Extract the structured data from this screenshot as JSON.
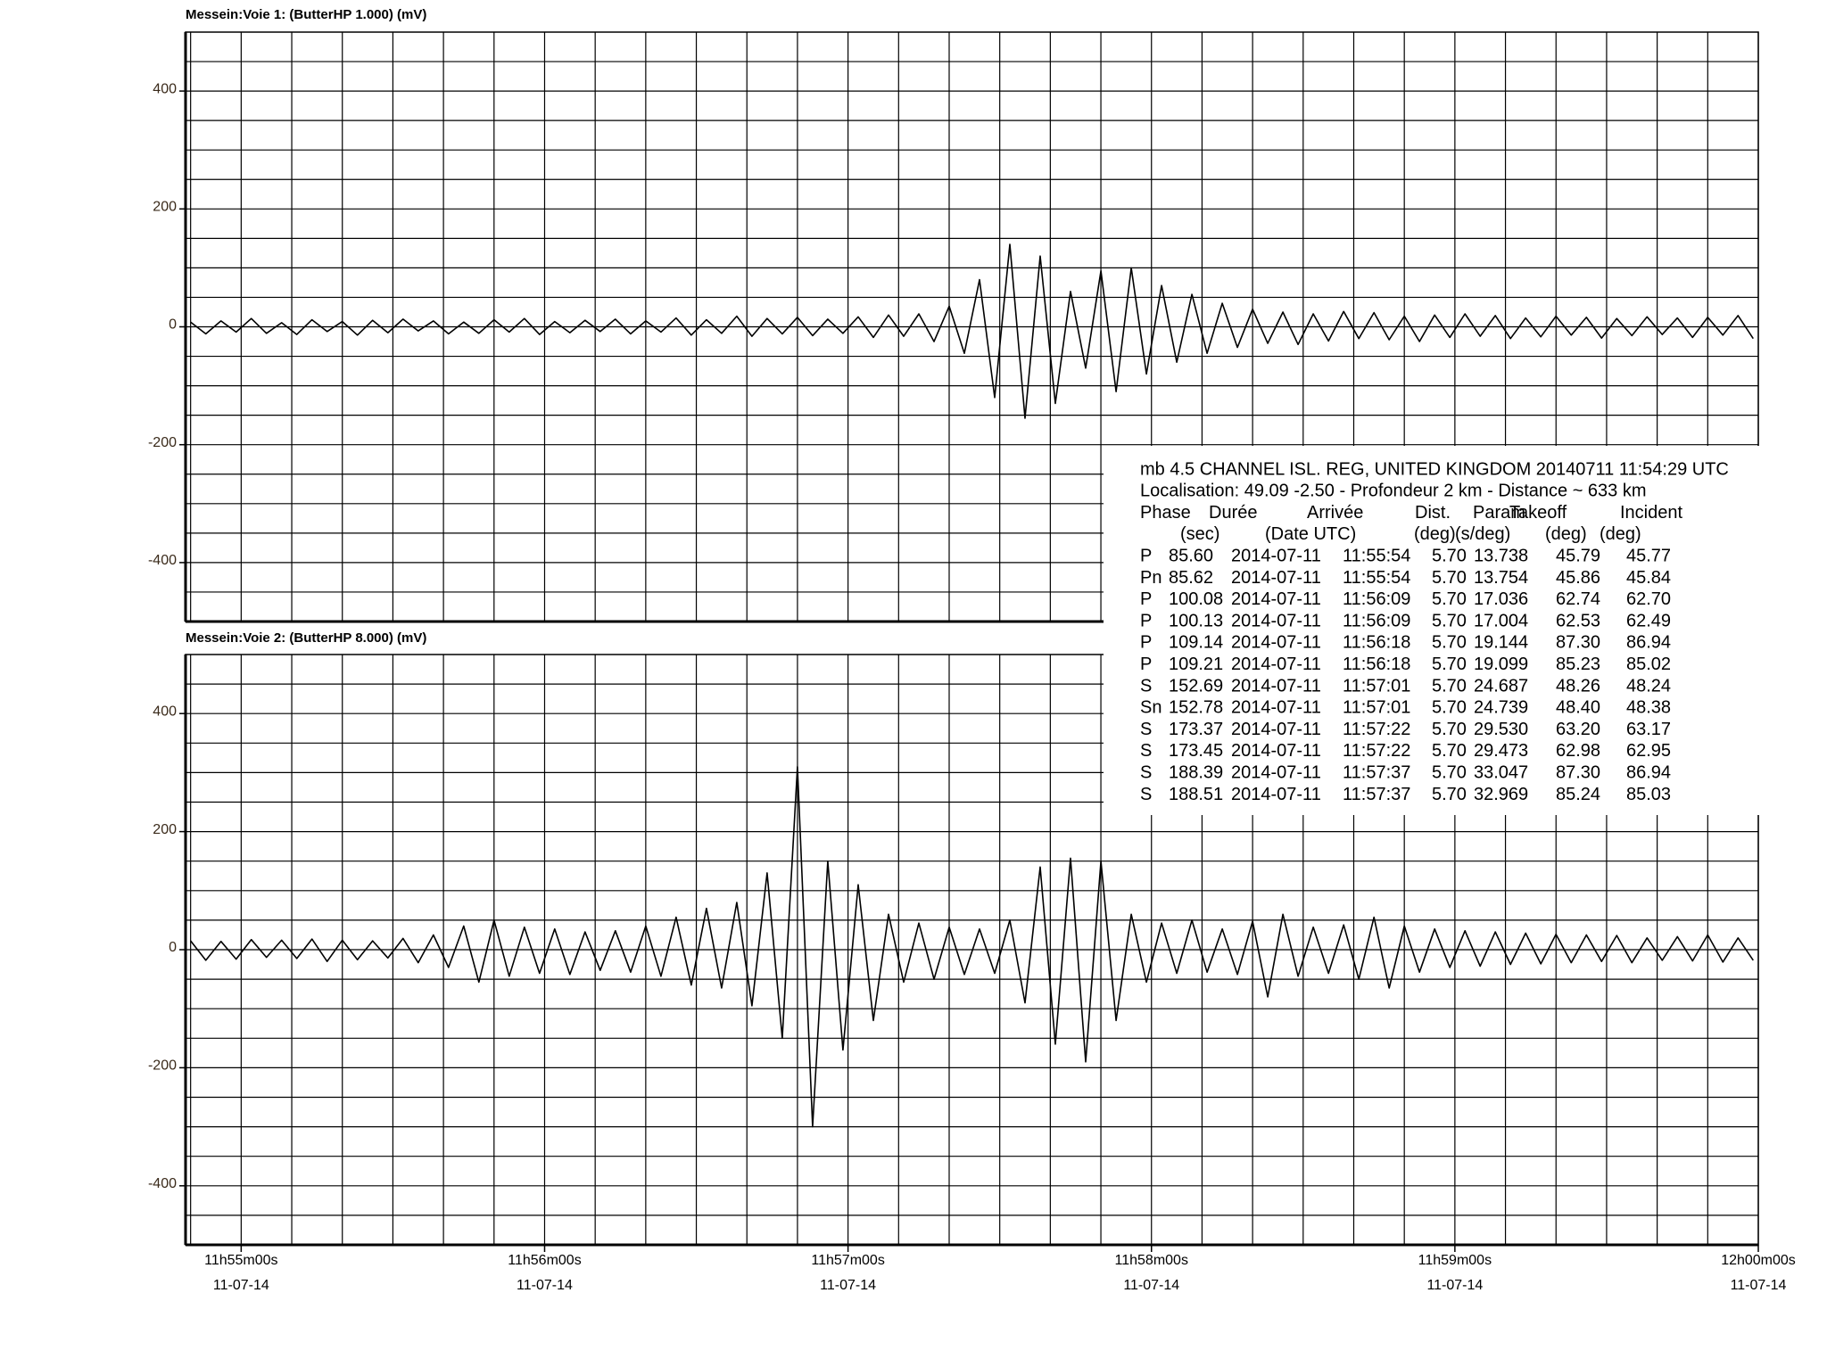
{
  "chart_data": [
    {
      "type": "line",
      "title": "Messein:Voie 1: (ButterHP 1.000) (mV)",
      "x": [
        42890,
        42893,
        42896,
        42899,
        42902,
        42905,
        42908,
        42911,
        42914,
        42917,
        42920,
        42923,
        42926,
        42929,
        42932,
        42935,
        42938,
        42941,
        42944,
        42947,
        42950,
        42953,
        42956,
        42959,
        42962,
        42965,
        42968,
        42971,
        42974,
        42977,
        42980,
        42983,
        42986,
        42989,
        42992,
        42995,
        42998,
        43001,
        43004,
        43007,
        43010,
        43013,
        43016,
        43019,
        43022,
        43025,
        43028,
        43031,
        43034,
        43037,
        43040,
        43043,
        43046,
        43049,
        43052,
        43055,
        43058,
        43061,
        43064,
        43067,
        43070,
        43073,
        43076,
        43079,
        43082,
        43085,
        43088,
        43091,
        43094,
        43097,
        43100,
        43103,
        43106,
        43109,
        43112,
        43115,
        43118,
        43121,
        43124,
        43127,
        43130,
        43133,
        43136,
        43139,
        43142,
        43145,
        43148,
        43151,
        43154,
        43157,
        43160,
        43163,
        43166,
        43169,
        43172,
        43175,
        43178,
        43181,
        43184,
        43187,
        43190,
        43193,
        43196,
        43199
      ],
      "series": [
        {
          "color": "#000000",
          "values": [
            8,
            -12,
            10,
            -9,
            14,
            -11,
            7,
            -13,
            12,
            -8,
            9,
            -14,
            11,
            -10,
            13,
            -7,
            10,
            -12,
            8,
            -11,
            12,
            -9,
            14,
            -13,
            9,
            -10,
            11,
            -8,
            13,
            -12,
            10,
            -9,
            15,
            -14,
            12,
            -11,
            18,
            -16,
            14,
            -12,
            16,
            -15,
            13,
            -11,
            17,
            -18,
            20,
            -16,
            22,
            -25,
            35,
            -45,
            80,
            -120,
            140,
            -155,
            120,
            -130,
            60,
            -70,
            95,
            -110,
            100,
            -80,
            70,
            -60,
            55,
            -45,
            40,
            -35,
            30,
            -28,
            25,
            -30,
            22,
            -24,
            26,
            -20,
            24,
            -22,
            18,
            -25,
            20,
            -18,
            22,
            -16,
            19,
            -20,
            15,
            -17,
            18,
            -14,
            16,
            -19,
            14,
            -15,
            17,
            -13,
            15,
            -18,
            16,
            -14,
            19,
            -20
          ]
        }
      ],
      "xlim": [
        42889,
        43200
      ],
      "ylim": [
        -500,
        500
      ],
      "yticks": [
        -400,
        -200,
        0,
        200,
        400
      ],
      "ygrid": [
        -450,
        -400,
        -350,
        -300,
        -250,
        -200,
        -150,
        -100,
        -50,
        0,
        50,
        100,
        150,
        200,
        250,
        300,
        350,
        400,
        450
      ],
      "xgrid": [
        42890,
        42900,
        42910,
        42920,
        42930,
        42940,
        42950,
        42960,
        42970,
        42980,
        42990,
        43000,
        43010,
        43020,
        43030,
        43040,
        43050,
        43060,
        43070,
        43080,
        43090,
        43100,
        43110,
        43120,
        43130,
        43140,
        43150,
        43160,
        43170,
        43180,
        43190,
        43200
      ]
    },
    {
      "type": "line",
      "title": "Messein:Voie 2: (ButterHP 8.000) (mV)",
      "x": [
        42890,
        42893,
        42896,
        42899,
        42902,
        42905,
        42908,
        42911,
        42914,
        42917,
        42920,
        42923,
        42926,
        42929,
        42932,
        42935,
        42938,
        42941,
        42944,
        42947,
        42950,
        42953,
        42956,
        42959,
        42962,
        42965,
        42968,
        42971,
        42974,
        42977,
        42980,
        42983,
        42986,
        42989,
        42992,
        42995,
        42998,
        43001,
        43004,
        43007,
        43010,
        43013,
        43016,
        43019,
        43022,
        43025,
        43028,
        43031,
        43034,
        43037,
        43040,
        43043,
        43046,
        43049,
        43052,
        43055,
        43058,
        43061,
        43064,
        43067,
        43070,
        43073,
        43076,
        43079,
        43082,
        43085,
        43088,
        43091,
        43094,
        43097,
        43100,
        43103,
        43106,
        43109,
        43112,
        43115,
        43118,
        43121,
        43124,
        43127,
        43130,
        43133,
        43136,
        43139,
        43142,
        43145,
        43148,
        43151,
        43154,
        43157,
        43160,
        43163,
        43166,
        43169,
        43172,
        43175,
        43178,
        43181,
        43184,
        43187,
        43190,
        43193,
        43196,
        43199
      ],
      "series": [
        {
          "color": "#000000",
          "values": [
            15,
            -18,
            14,
            -16,
            17,
            -13,
            16,
            -15,
            18,
            -20,
            16,
            -17,
            15,
            -14,
            19,
            -22,
            25,
            -30,
            40,
            -55,
            50,
            -45,
            38,
            -40,
            35,
            -42,
            30,
            -35,
            32,
            -38,
            40,
            -45,
            55,
            -60,
            70,
            -65,
            80,
            -95,
            130,
            -150,
            310,
            -300,
            150,
            -170,
            110,
            -120,
            60,
            -55,
            45,
            -50,
            38,
            -42,
            35,
            -40,
            50,
            -90,
            140,
            -160,
            155,
            -190,
            150,
            -120,
            60,
            -55,
            45,
            -40,
            50,
            -38,
            35,
            -42,
            48,
            -80,
            60,
            -45,
            38,
            -40,
            42,
            -50,
            55,
            -65,
            40,
            -38,
            35,
            -30,
            32,
            -28,
            30,
            -25,
            28,
            -24,
            26,
            -22,
            25,
            -20,
            24,
            -22,
            20,
            -18,
            22,
            -19,
            25,
            -21,
            20,
            -18
          ]
        }
      ],
      "xlim": [
        42889,
        43200
      ],
      "ylim": [
        -500,
        500
      ],
      "yticks": [
        -400,
        -200,
        0,
        200,
        400
      ],
      "ygrid": [
        -450,
        -400,
        -350,
        -300,
        -250,
        -200,
        -150,
        -100,
        -50,
        0,
        50,
        100,
        150,
        200,
        250,
        300,
        350,
        400,
        450
      ],
      "xgrid": [
        42890,
        42900,
        42910,
        42920,
        42930,
        42940,
        42950,
        42960,
        42970,
        42980,
        42990,
        43000,
        43010,
        43020,
        43030,
        43040,
        43050,
        43060,
        43070,
        43080,
        43090,
        43100,
        43110,
        43120,
        43130,
        43140,
        43150,
        43160,
        43170,
        43180,
        43190,
        43200
      ],
      "xticks": [
        {
          "value": 42900,
          "label": "11h55m00s",
          "date": "11-07-14"
        },
        {
          "value": 42960,
          "label": "11h56m00s",
          "date": "11-07-14"
        },
        {
          "value": 43020,
          "label": "11h57m00s",
          "date": "11-07-14"
        },
        {
          "value": 43080,
          "label": "11h58m00s",
          "date": "11-07-14"
        },
        {
          "value": 43140,
          "label": "11h59m00s",
          "date": "11-07-14"
        },
        {
          "value": 43200,
          "label": "12h00m00s",
          "date": "11-07-14"
        }
      ]
    }
  ],
  "event_info": {
    "title": "mb 4.5  CHANNEL ISL. REG, UNITED KINGDOM 20140711 11:54:29 UTC",
    "location": "Localisation: 49.09 -2.50 - Profondeur 2   km - Distance ~ 633 km",
    "header": [
      "Phase",
      "Durée",
      "Arrivée",
      "Dist.",
      "Param",
      "Takeoff",
      "Incident"
    ],
    "units": [
      "(sec)",
      "(Date UTC)",
      "(deg)",
      "(s/deg)",
      "(deg)",
      "(deg)"
    ],
    "rows": [
      [
        "P",
        "85.60",
        "2014-07-11",
        "11:55:54",
        "5.70",
        "13.738",
        "45.79",
        "45.77"
      ],
      [
        "Pn",
        "85.62",
        "2014-07-11",
        "11:55:54",
        "5.70",
        "13.754",
        "45.86",
        "45.84"
      ],
      [
        "P",
        "100.08",
        "2014-07-11",
        "11:56:09",
        "5.70",
        "17.036",
        "62.74",
        "62.70"
      ],
      [
        "P",
        "100.13",
        "2014-07-11",
        "11:56:09",
        "5.70",
        "17.004",
        "62.53",
        "62.49"
      ],
      [
        "P",
        "109.14",
        "2014-07-11",
        "11:56:18",
        "5.70",
        "19.144",
        "87.30",
        "86.94"
      ],
      [
        "P",
        "109.21",
        "2014-07-11",
        "11:56:18",
        "5.70",
        "19.099",
        "85.23",
        "85.02"
      ],
      [
        "S",
        "152.69",
        "2014-07-11",
        "11:57:01",
        "5.70",
        "24.687",
        "48.26",
        "48.24"
      ],
      [
        "Sn",
        "152.78",
        "2014-07-11",
        "11:57:01",
        "5.70",
        "24.739",
        "48.40",
        "48.38"
      ],
      [
        "S",
        "173.37",
        "2014-07-11",
        "11:57:22",
        "5.70",
        "29.530",
        "63.20",
        "63.17"
      ],
      [
        "S",
        "173.45",
        "2014-07-11",
        "11:57:22",
        "5.70",
        "29.473",
        "62.98",
        "62.95"
      ],
      [
        "S",
        "188.39",
        "2014-07-11",
        "11:57:37",
        "5.70",
        "33.047",
        "87.30",
        "86.94"
      ],
      [
        "S",
        "188.51",
        "2014-07-11",
        "11:57:37",
        "5.70",
        "32.969",
        "85.24",
        "85.03"
      ]
    ]
  }
}
